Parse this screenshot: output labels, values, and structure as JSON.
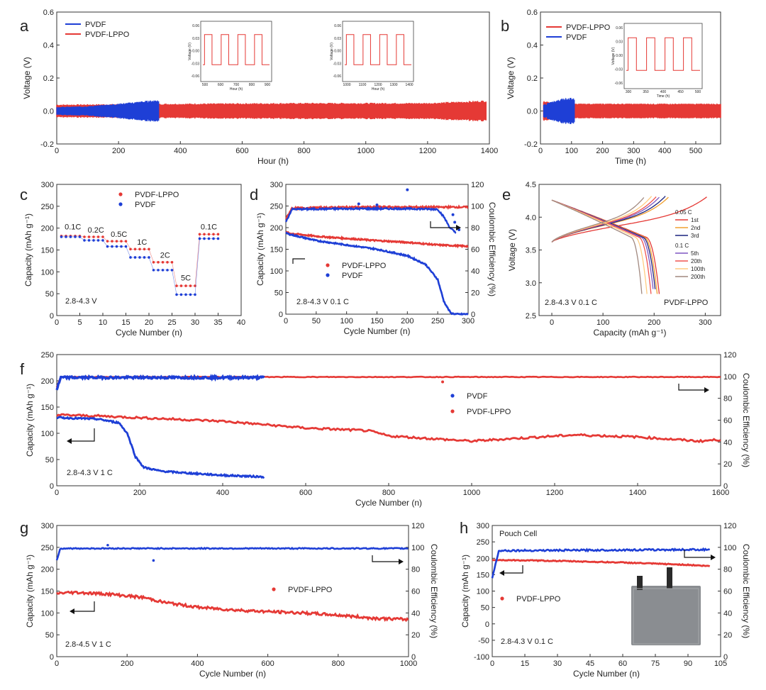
{
  "colors": {
    "red": "#e53935",
    "blue": "#1e3fd6",
    "axis": "#333333",
    "pouch": "#8a8d91",
    "tab": "#2a2a2a"
  },
  "chart_data": [
    {
      "id": "a",
      "panel_label": "a",
      "type": "line",
      "xlabel": "Hour (h)",
      "ylabel": "Voltage (V)",
      "xlim": [
        0,
        1400
      ],
      "ylim": [
        -0.2,
        0.6
      ],
      "xticks": [
        0,
        200,
        400,
        600,
        800,
        1000,
        1200,
        1400
      ],
      "yticks": [
        -0.2,
        0.0,
        0.2,
        0.4,
        0.6
      ],
      "ytick_labels": [
        "-0.2",
        "0.0",
        "0.2",
        "0.4",
        "0.6"
      ],
      "legend": [
        "PVDF",
        "PVDF-LPPO"
      ],
      "series": [
        {
          "name": "PVDF",
          "color": "blue",
          "x": [
            0,
            100,
            200,
            330
          ],
          "amp": [
            0.025,
            0.03,
            0.045,
            0.07
          ]
        },
        {
          "name": "PVDF-LPPO",
          "color": "red",
          "x": [
            0,
            330,
            800,
            1200,
            1390
          ],
          "amp": [
            0.04,
            0.045,
            0.05,
            0.05,
            0.065
          ]
        }
      ],
      "insets": [
        {
          "xticks": [
            "500",
            "600",
            "700",
            "800",
            "900"
          ],
          "xlabel": "Hour (h)",
          "ylabel": "Voltage (V)",
          "yticks": [
            "0.06",
            "0.03",
            "0.00",
            "-0.03",
            "-0.06"
          ]
        },
        {
          "xticks": [
            "1000",
            "1100",
            "1200",
            "1300",
            "1400"
          ],
          "xlabel": "Hour (h)",
          "ylabel": "Voltage (V)",
          "yticks": [
            "0.06",
            "0.03",
            "0.00",
            "-0.03",
            "-0.06"
          ]
        }
      ]
    },
    {
      "id": "b",
      "panel_label": "b",
      "type": "line",
      "xlabel": "Time (h)",
      "ylabel": "Voltage (V)",
      "xlim": [
        0,
        580
      ],
      "ylim": [
        -0.2,
        0.6
      ],
      "xticks": [
        0,
        100,
        200,
        300,
        400,
        500
      ],
      "yticks": [
        -0.2,
        0.0,
        0.2,
        0.4,
        0.6
      ],
      "ytick_labels": [
        "-0.2",
        "0.0",
        "0.2",
        "0.4",
        "0.6"
      ],
      "legend": [
        "PVDF-LPPO",
        "PVDF"
      ],
      "series": [
        {
          "name": "PVDF-LPPO",
          "color": "red",
          "x": [
            10,
            40,
            100,
            300,
            580
          ],
          "amp": [
            0.06,
            0.05,
            0.045,
            0.045,
            0.045
          ]
        },
        {
          "name": "PVDF",
          "color": "blue",
          "x": [
            10,
            40,
            80,
            110
          ],
          "amp": [
            0.04,
            0.06,
            0.08,
            0.08
          ]
        }
      ],
      "insets": [
        {
          "xticks": [
            "300",
            "350",
            "400",
            "450",
            "500"
          ],
          "xlabel": "Time (h)",
          "ylabel": "Voltage (V)",
          "yticks": [
            "0.06",
            "0.03",
            "0.00",
            "-0.03",
            "-0.06"
          ]
        }
      ]
    },
    {
      "id": "c",
      "panel_label": "c",
      "type": "scatter",
      "xlabel": "Cycle Number (n)",
      "ylabel": "Capacity (mAh g⁻¹)",
      "xlim": [
        0,
        40
      ],
      "ylim": [
        0,
        300
      ],
      "xticks": [
        0,
        5,
        10,
        15,
        20,
        25,
        30,
        35,
        40
      ],
      "yticks": [
        0,
        50,
        100,
        150,
        200,
        250,
        300
      ],
      "legend": [
        "PVDF-LPPO",
        "PVDF"
      ],
      "rate_labels": [
        {
          "text": "0.1C",
          "x": 3.5,
          "y": 197
        },
        {
          "text": "0.2C",
          "x": 8.5,
          "y": 190
        },
        {
          "text": "0.5C",
          "x": 13.5,
          "y": 180
        },
        {
          "text": "1C",
          "x": 18.5,
          "y": 162
        },
        {
          "text": "2C",
          "x": 23.5,
          "y": 132
        },
        {
          "text": "5C",
          "x": 28,
          "y": 80
        },
        {
          "text": "0.1C",
          "x": 33,
          "y": 197
        }
      ],
      "annotation": "2.8-4.3 V",
      "series": [
        {
          "name": "PVDF-LPPO",
          "color": "red",
          "segments": [
            [
              1,
              5,
              182
            ],
            [
              6,
              10,
              180
            ],
            [
              11,
              15,
              170
            ],
            [
              16,
              20,
              152
            ],
            [
              21,
              25,
              122
            ],
            [
              26,
              30,
              68
            ],
            [
              31,
              35,
              186
            ]
          ]
        },
        {
          "name": "PVDF",
          "color": "blue",
          "segments": [
            [
              1,
              5,
              180
            ],
            [
              6,
              10,
              172
            ],
            [
              11,
              15,
              158
            ],
            [
              16,
              20,
              133
            ],
            [
              21,
              25,
              104
            ],
            [
              26,
              30,
              48
            ],
            [
              31,
              35,
              176
            ]
          ]
        }
      ]
    },
    {
      "id": "d",
      "panel_label": "d",
      "type": "scatter",
      "xlabel": "Cycle Number (n)",
      "ylabel": "Capacity (mAh g⁻¹)",
      "y2label": "Coulombic Efficiency (%)",
      "xlim": [
        0,
        300
      ],
      "ylim": [
        0,
        300
      ],
      "y2lim": [
        0,
        120
      ],
      "xticks": [
        0,
        50,
        100,
        150,
        200,
        250,
        300
      ],
      "yticks": [
        0,
        50,
        100,
        150,
        200,
        250,
        300
      ],
      "y2ticks": [
        0,
        20,
        40,
        60,
        80,
        100,
        120
      ],
      "legend": [
        "PVDF-LPPO",
        "PVDF"
      ],
      "annotation": "2.8-4.3 V  0.1 C",
      "series": [
        {
          "name": "PVDF-LPPO capacity",
          "color": "red",
          "x": [
            0,
            5,
            50,
            100,
            150,
            200,
            250,
            300
          ],
          "y": [
            190,
            187,
            180,
            175,
            170,
            166,
            160,
            157
          ]
        },
        {
          "name": "PVDF capacity",
          "color": "blue",
          "x": [
            0,
            5,
            50,
            100,
            150,
            200,
            230,
            250,
            260,
            268,
            272,
            280,
            300
          ],
          "y": [
            188,
            185,
            170,
            160,
            150,
            135,
            115,
            80,
            30,
            10,
            2,
            0,
            0
          ]
        },
        {
          "name": "PVDF-LPPO CE",
          "color": "red",
          "x": [
            0,
            10,
            100,
            200,
            300
          ],
          "y": [
            88,
            98,
            99,
            99,
            99
          ]
        },
        {
          "name": "PVDF CE",
          "color": "blue",
          "x": [
            0,
            10,
            100,
            200,
            250,
            260,
            270,
            280
          ],
          "y": [
            85,
            97,
            97.5,
            97.5,
            97,
            90,
            80,
            75
          ]
        }
      ]
    },
    {
      "id": "e",
      "panel_label": "e",
      "type": "line",
      "xlabel": "Capacity (mAh g⁻¹)",
      "ylabel": "Voltage (V)",
      "xlim": [
        -25,
        330
      ],
      "ylim": [
        2.5,
        4.5
      ],
      "xticks": [
        0,
        100,
        200,
        300
      ],
      "yticks": [
        2.5,
        3.0,
        3.5,
        4.0,
        4.5
      ],
      "ytick_labels": [
        "2.5",
        "3.0",
        "3.5",
        "4.0",
        "4.5"
      ],
      "annotation": "2.8-4.3 V  0.1 C",
      "sample_label": "PVDF-LPPO",
      "legend_groups": [
        {
          "title": "0.05 C",
          "items": [
            "1st",
            "2nd",
            "3rd"
          ]
        },
        {
          "title": "0.1 C",
          "items": [
            "5th",
            "20th",
            "100th",
            "200th"
          ]
        }
      ],
      "series": [
        {
          "name": "1st",
          "color": "#e53935",
          "charge_max": 305,
          "discharge_max": 210
        },
        {
          "name": "2nd",
          "color": "#f0a030",
          "charge_max": 230,
          "discharge_max": 206
        },
        {
          "name": "3rd",
          "color": "#1a237e",
          "charge_max": 222,
          "discharge_max": 203
        },
        {
          "name": "5th",
          "color": "#7e57c2",
          "charge_max": 212,
          "discharge_max": 199
        },
        {
          "name": "20th",
          "color": "#ef5350",
          "charge_max": 205,
          "discharge_max": 194
        },
        {
          "name": "100th",
          "color": "#ffcc80",
          "charge_max": 195,
          "discharge_max": 186
        },
        {
          "name": "200th",
          "color": "#a1887f",
          "charge_max": 182,
          "discharge_max": 176
        }
      ]
    },
    {
      "id": "f",
      "panel_label": "f",
      "type": "scatter",
      "xlabel": "Cycle Number (n)",
      "ylabel": "Capacity (mAh g⁻¹)",
      "y2label": "Coulombic Efficiency (%)",
      "xlim": [
        0,
        1600
      ],
      "ylim": [
        0,
        250
      ],
      "y2lim": [
        0,
        120
      ],
      "xticks": [
        0,
        200,
        400,
        600,
        800,
        1000,
        1200,
        1400,
        1600
      ],
      "yticks": [
        0,
        50,
        100,
        150,
        200,
        250
      ],
      "y2ticks": [
        0,
        20,
        40,
        60,
        80,
        100,
        120
      ],
      "legend": [
        "PVDF",
        "PVDF-LPPO"
      ],
      "annotation": "2.8-4.3 V  1 C",
      "series": [
        {
          "name": "PVDF-LPPO capacity",
          "color": "red",
          "x": [
            0,
            100,
            400,
            600,
            750,
            800,
            900,
            1000,
            1100,
            1250,
            1400,
            1550,
            1600
          ],
          "y": [
            135,
            133,
            123,
            110,
            105,
            95,
            90,
            85,
            90,
            97,
            93,
            85,
            88
          ]
        },
        {
          "name": "PVDF capacity",
          "color": "blue",
          "x": [
            0,
            100,
            150,
            170,
            190,
            210,
            250,
            300,
            400,
            500
          ],
          "y": [
            130,
            127,
            120,
            100,
            55,
            35,
            28,
            25,
            20,
            17
          ]
        },
        {
          "name": "PVDF-LPPO CE",
          "color": "red",
          "x": [
            0,
            10,
            1600
          ],
          "y": [
            90,
            99.5,
            99.5
          ]
        },
        {
          "name": "PVDF CE",
          "color": "blue",
          "x": [
            0,
            10,
            500
          ],
          "y": [
            88,
            99,
            99
          ]
        }
      ]
    },
    {
      "id": "g",
      "panel_label": "g",
      "type": "scatter",
      "xlabel": "Cycle Number (n)",
      "ylabel": "Capacity (mAh g⁻¹)",
      "y2label": "Coulombic Efficiency (%)",
      "xlim": [
        0,
        1000
      ],
      "ylim": [
        0,
        300
      ],
      "y2lim": [
        0,
        120
      ],
      "xticks": [
        0,
        200,
        400,
        600,
        800,
        1000
      ],
      "yticks": [
        0,
        50,
        100,
        150,
        200,
        250,
        300
      ],
      "y2ticks": [
        0,
        20,
        40,
        60,
        80,
        100,
        120
      ],
      "legend": [
        "PVDF-LPPO"
      ],
      "annotation": "2.8-4.5 V  1 C",
      "series": [
        {
          "name": "PVDF-LPPO capacity",
          "color": "red",
          "x": [
            0,
            50,
            150,
            250,
            300,
            400,
            500,
            600,
            700,
            800,
            900,
            1000
          ],
          "y": [
            145,
            147,
            143,
            135,
            125,
            113,
            107,
            103,
            100,
            95,
            88,
            85
          ]
        },
        {
          "name": "PVDF-LPPO CE",
          "color": "blue",
          "x": [
            0,
            10,
            1000
          ],
          "y": [
            88,
            99,
            99
          ]
        }
      ]
    },
    {
      "id": "h",
      "panel_label": "h",
      "type": "scatter",
      "title": "Pouch Cell",
      "xlabel": "Cycle Number (n)",
      "ylabel": "Capacity (mAh g⁻¹)",
      "y2label": "Coulombic Efficiency (%)",
      "xlim": [
        0,
        105
      ],
      "ylim": [
        -100,
        300
      ],
      "y2lim": [
        0,
        120
      ],
      "xticks": [
        0,
        15,
        30,
        45,
        60,
        75,
        90,
        105
      ],
      "yticks": [
        -100,
        -50,
        0,
        50,
        100,
        150,
        200,
        250,
        300
      ],
      "y2ticks": [
        0,
        20,
        40,
        60,
        80,
        100,
        120
      ],
      "legend": [
        "PVDF-LPPO"
      ],
      "annotation": "2.8-4.3 V  0.1 C",
      "series": [
        {
          "name": "PVDF-LPPO capacity",
          "color": "red",
          "x": [
            0,
            30,
            60,
            90,
            100
          ],
          "y": [
            195,
            192,
            187,
            180,
            176
          ]
        },
        {
          "name": "PVDF-LPPO CE",
          "color": "blue",
          "x": [
            0,
            3,
            100
          ],
          "y": [
            72,
            97,
            98
          ]
        }
      ]
    }
  ]
}
